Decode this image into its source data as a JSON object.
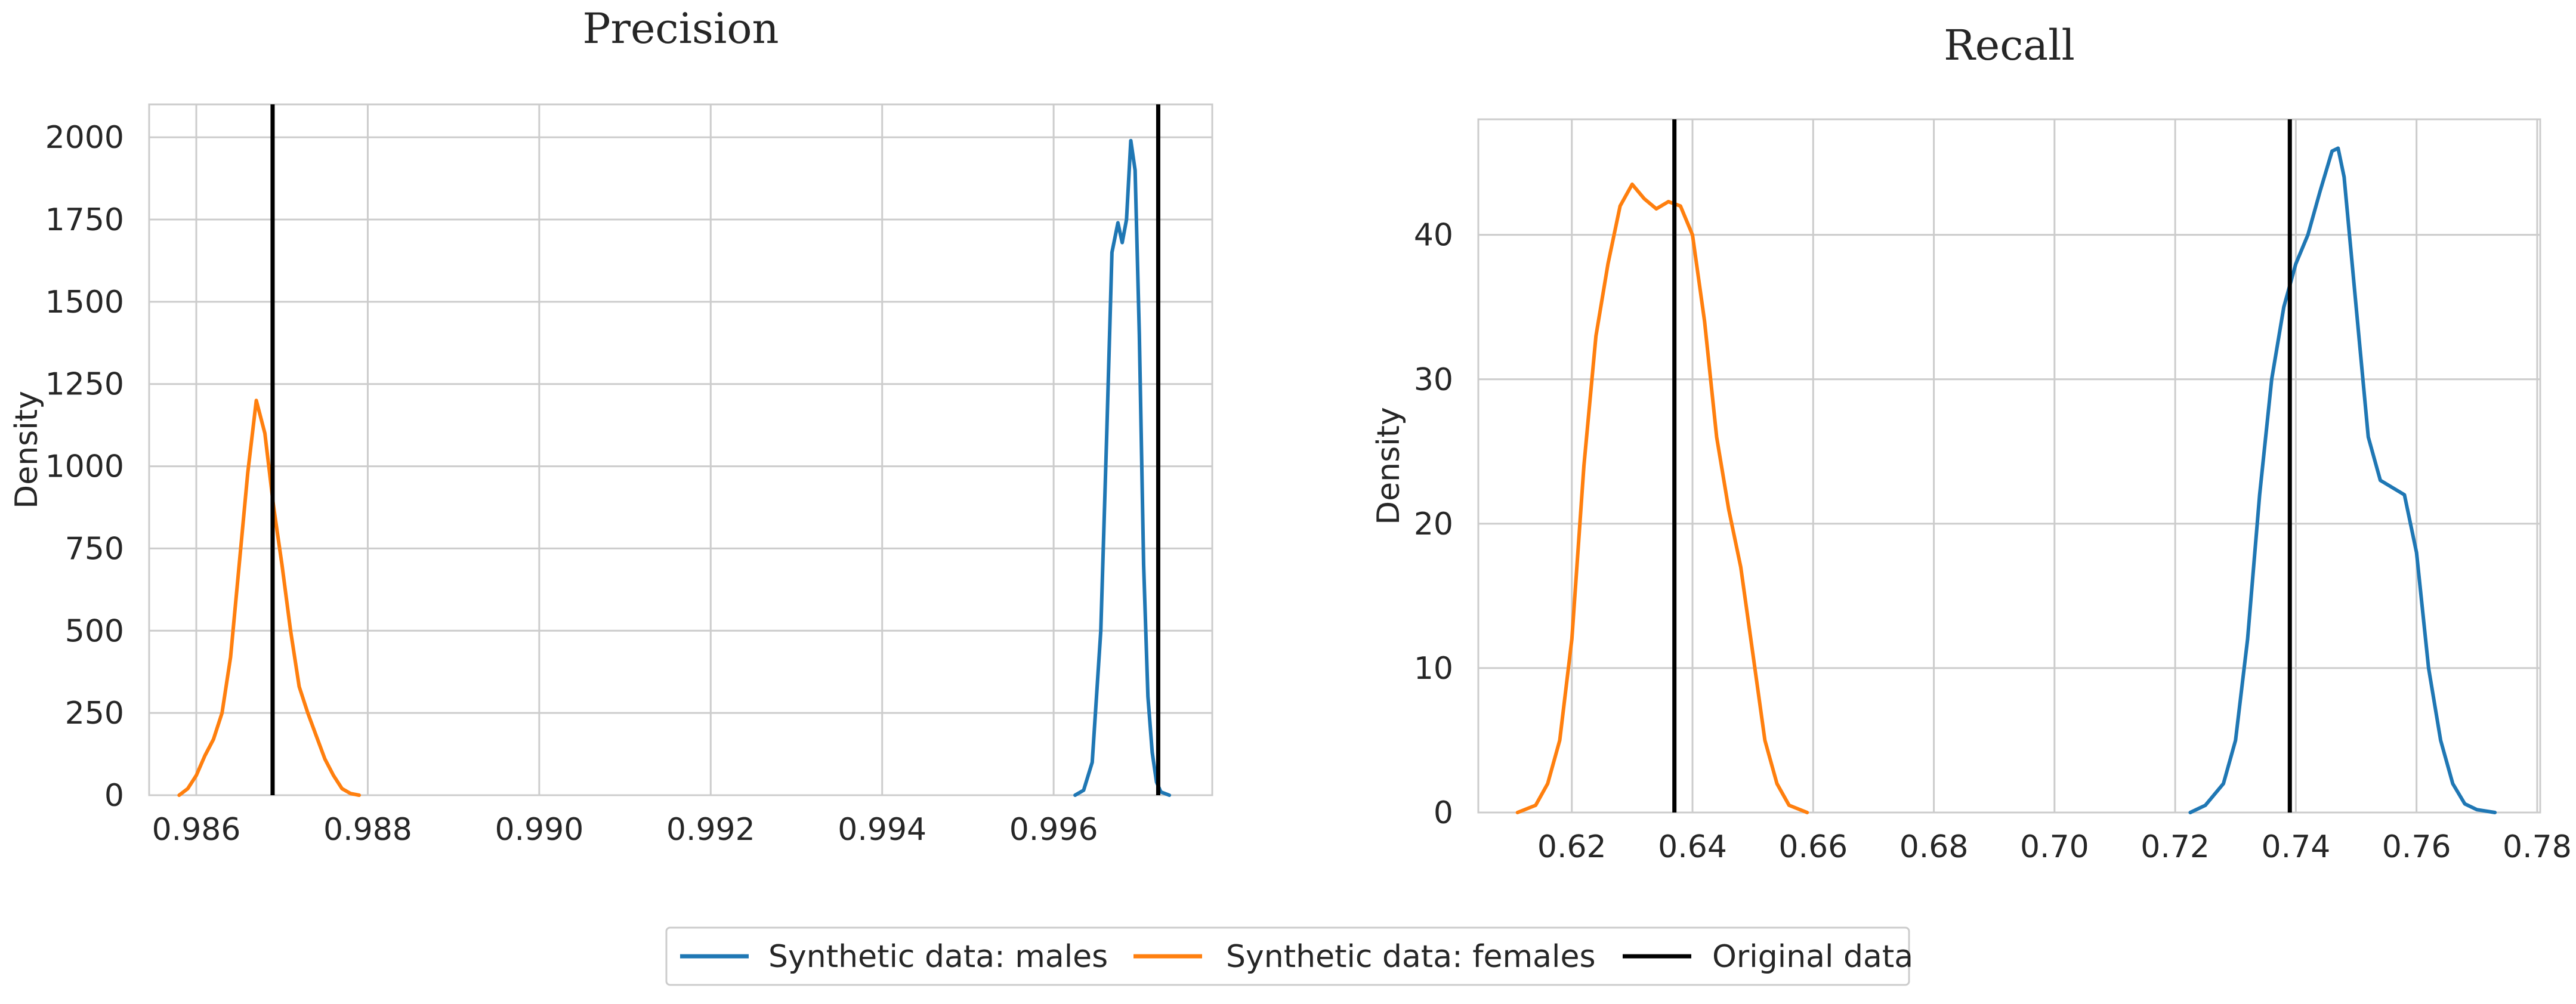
{
  "chart_data": [
    {
      "type": "line",
      "subtype": "density",
      "title": "Precision",
      "xlabel": "",
      "ylabel": "Density",
      "xlim": [
        0.98545,
        0.99785
      ],
      "ylim": [
        0,
        2100
      ],
      "xticks": [
        0.986,
        0.988,
        0.99,
        0.992,
        0.994,
        0.996
      ],
      "xtick_labels": [
        "0.986",
        "0.988",
        "0.990",
        "0.992",
        "0.994",
        "0.996"
      ],
      "yticks": [
        0,
        250,
        500,
        750,
        1000,
        1250,
        1500,
        1750,
        2000
      ],
      "ytick_labels": [
        "0",
        "250",
        "500",
        "750",
        "1000",
        "1250",
        "1500",
        "1750",
        "2000"
      ],
      "grid": true,
      "series": [
        {
          "name": "Synthetic data: males",
          "color": "#1f77b4",
          "x": [
            0.99625,
            0.99635,
            0.99645,
            0.99655,
            0.99662,
            0.99668,
            0.99675,
            0.9968,
            0.99685,
            0.9969,
            0.99695,
            0.997,
            0.99705,
            0.9971,
            0.99715,
            0.9972,
            0.99725,
            0.99735
          ],
          "y": [
            0,
            15,
            100,
            500,
            1100,
            1650,
            1740,
            1680,
            1750,
            1990,
            1900,
            1400,
            700,
            300,
            130,
            40,
            10,
            0
          ]
        },
        {
          "name": "Synthetic data: females",
          "color": "#ff7f0e",
          "x": [
            0.9858,
            0.9859,
            0.986,
            0.9861,
            0.9862,
            0.9863,
            0.9864,
            0.9865,
            0.9866,
            0.9867,
            0.9868,
            0.9869,
            0.987,
            0.9871,
            0.9872,
            0.9873,
            0.9874,
            0.9875,
            0.9876,
            0.9877,
            0.9878,
            0.9879
          ],
          "y": [
            0,
            20,
            60,
            120,
            170,
            250,
            420,
            700,
            980,
            1200,
            1100,
            880,
            700,
            500,
            330,
            250,
            180,
            110,
            60,
            20,
            5,
            0
          ]
        }
      ],
      "reference_lines": [
        {
          "name": "Original data",
          "color": "#000000",
          "x": 0.98689
        },
        {
          "name": "Original data",
          "color": "#000000",
          "x": 0.99722
        }
      ]
    },
    {
      "type": "line",
      "subtype": "density",
      "title": "Recall",
      "xlabel": "",
      "ylabel": "Density",
      "xlim": [
        0.6045,
        0.7805
      ],
      "ylim": [
        0,
        48
      ],
      "xticks": [
        0.62,
        0.64,
        0.66,
        0.68,
        0.7,
        0.72,
        0.74,
        0.76,
        0.78
      ],
      "xtick_labels": [
        "0.62",
        "0.64",
        "0.66",
        "0.68",
        "0.70",
        "0.72",
        "0.74",
        "0.76",
        "0.78"
      ],
      "yticks": [
        0,
        10,
        20,
        30,
        40
      ],
      "ytick_labels": [
        "0",
        "10",
        "20",
        "30",
        "40"
      ],
      "grid": true,
      "series": [
        {
          "name": "Synthetic data: males",
          "color": "#1f77b4",
          "x": [
            0.7225,
            0.725,
            0.728,
            0.73,
            0.732,
            0.734,
            0.736,
            0.738,
            0.74,
            0.742,
            0.744,
            0.746,
            0.747,
            0.748,
            0.75,
            0.752,
            0.754,
            0.756,
            0.758,
            0.76,
            0.762,
            0.764,
            0.766,
            0.768,
            0.77,
            0.773
          ],
          "y": [
            0,
            0.5,
            2,
            5,
            12,
            22,
            30,
            35,
            38,
            40,
            43,
            45.8,
            46,
            44,
            35,
            26,
            23,
            22.5,
            22,
            18,
            10,
            5,
            2,
            0.6,
            0.2,
            0
          ]
        },
        {
          "name": "Synthetic data: females",
          "color": "#ff7f0e",
          "x": [
            0.611,
            0.614,
            0.616,
            0.618,
            0.62,
            0.622,
            0.624,
            0.626,
            0.628,
            0.63,
            0.632,
            0.634,
            0.636,
            0.638,
            0.64,
            0.642,
            0.644,
            0.646,
            0.648,
            0.65,
            0.652,
            0.654,
            0.656,
            0.659
          ],
          "y": [
            0,
            0.5,
            2,
            5,
            12,
            24,
            33,
            38,
            42,
            43.5,
            42.5,
            41.8,
            42.3,
            42,
            40,
            34,
            26,
            21,
            17,
            11,
            5,
            2,
            0.5,
            0
          ]
        }
      ],
      "reference_lines": [
        {
          "name": "Original data",
          "color": "#000000",
          "x": 0.637
        },
        {
          "name": "Original data",
          "color": "#000000",
          "x": 0.739
        }
      ]
    }
  ],
  "legend": {
    "placement": "bottom-center",
    "items": [
      {
        "label": "Synthetic data: males",
        "color": "#1f77b4"
      },
      {
        "label": "Synthetic data: females",
        "color": "#ff7f0e"
      },
      {
        "label": "Original data",
        "color": "#000000"
      }
    ]
  }
}
